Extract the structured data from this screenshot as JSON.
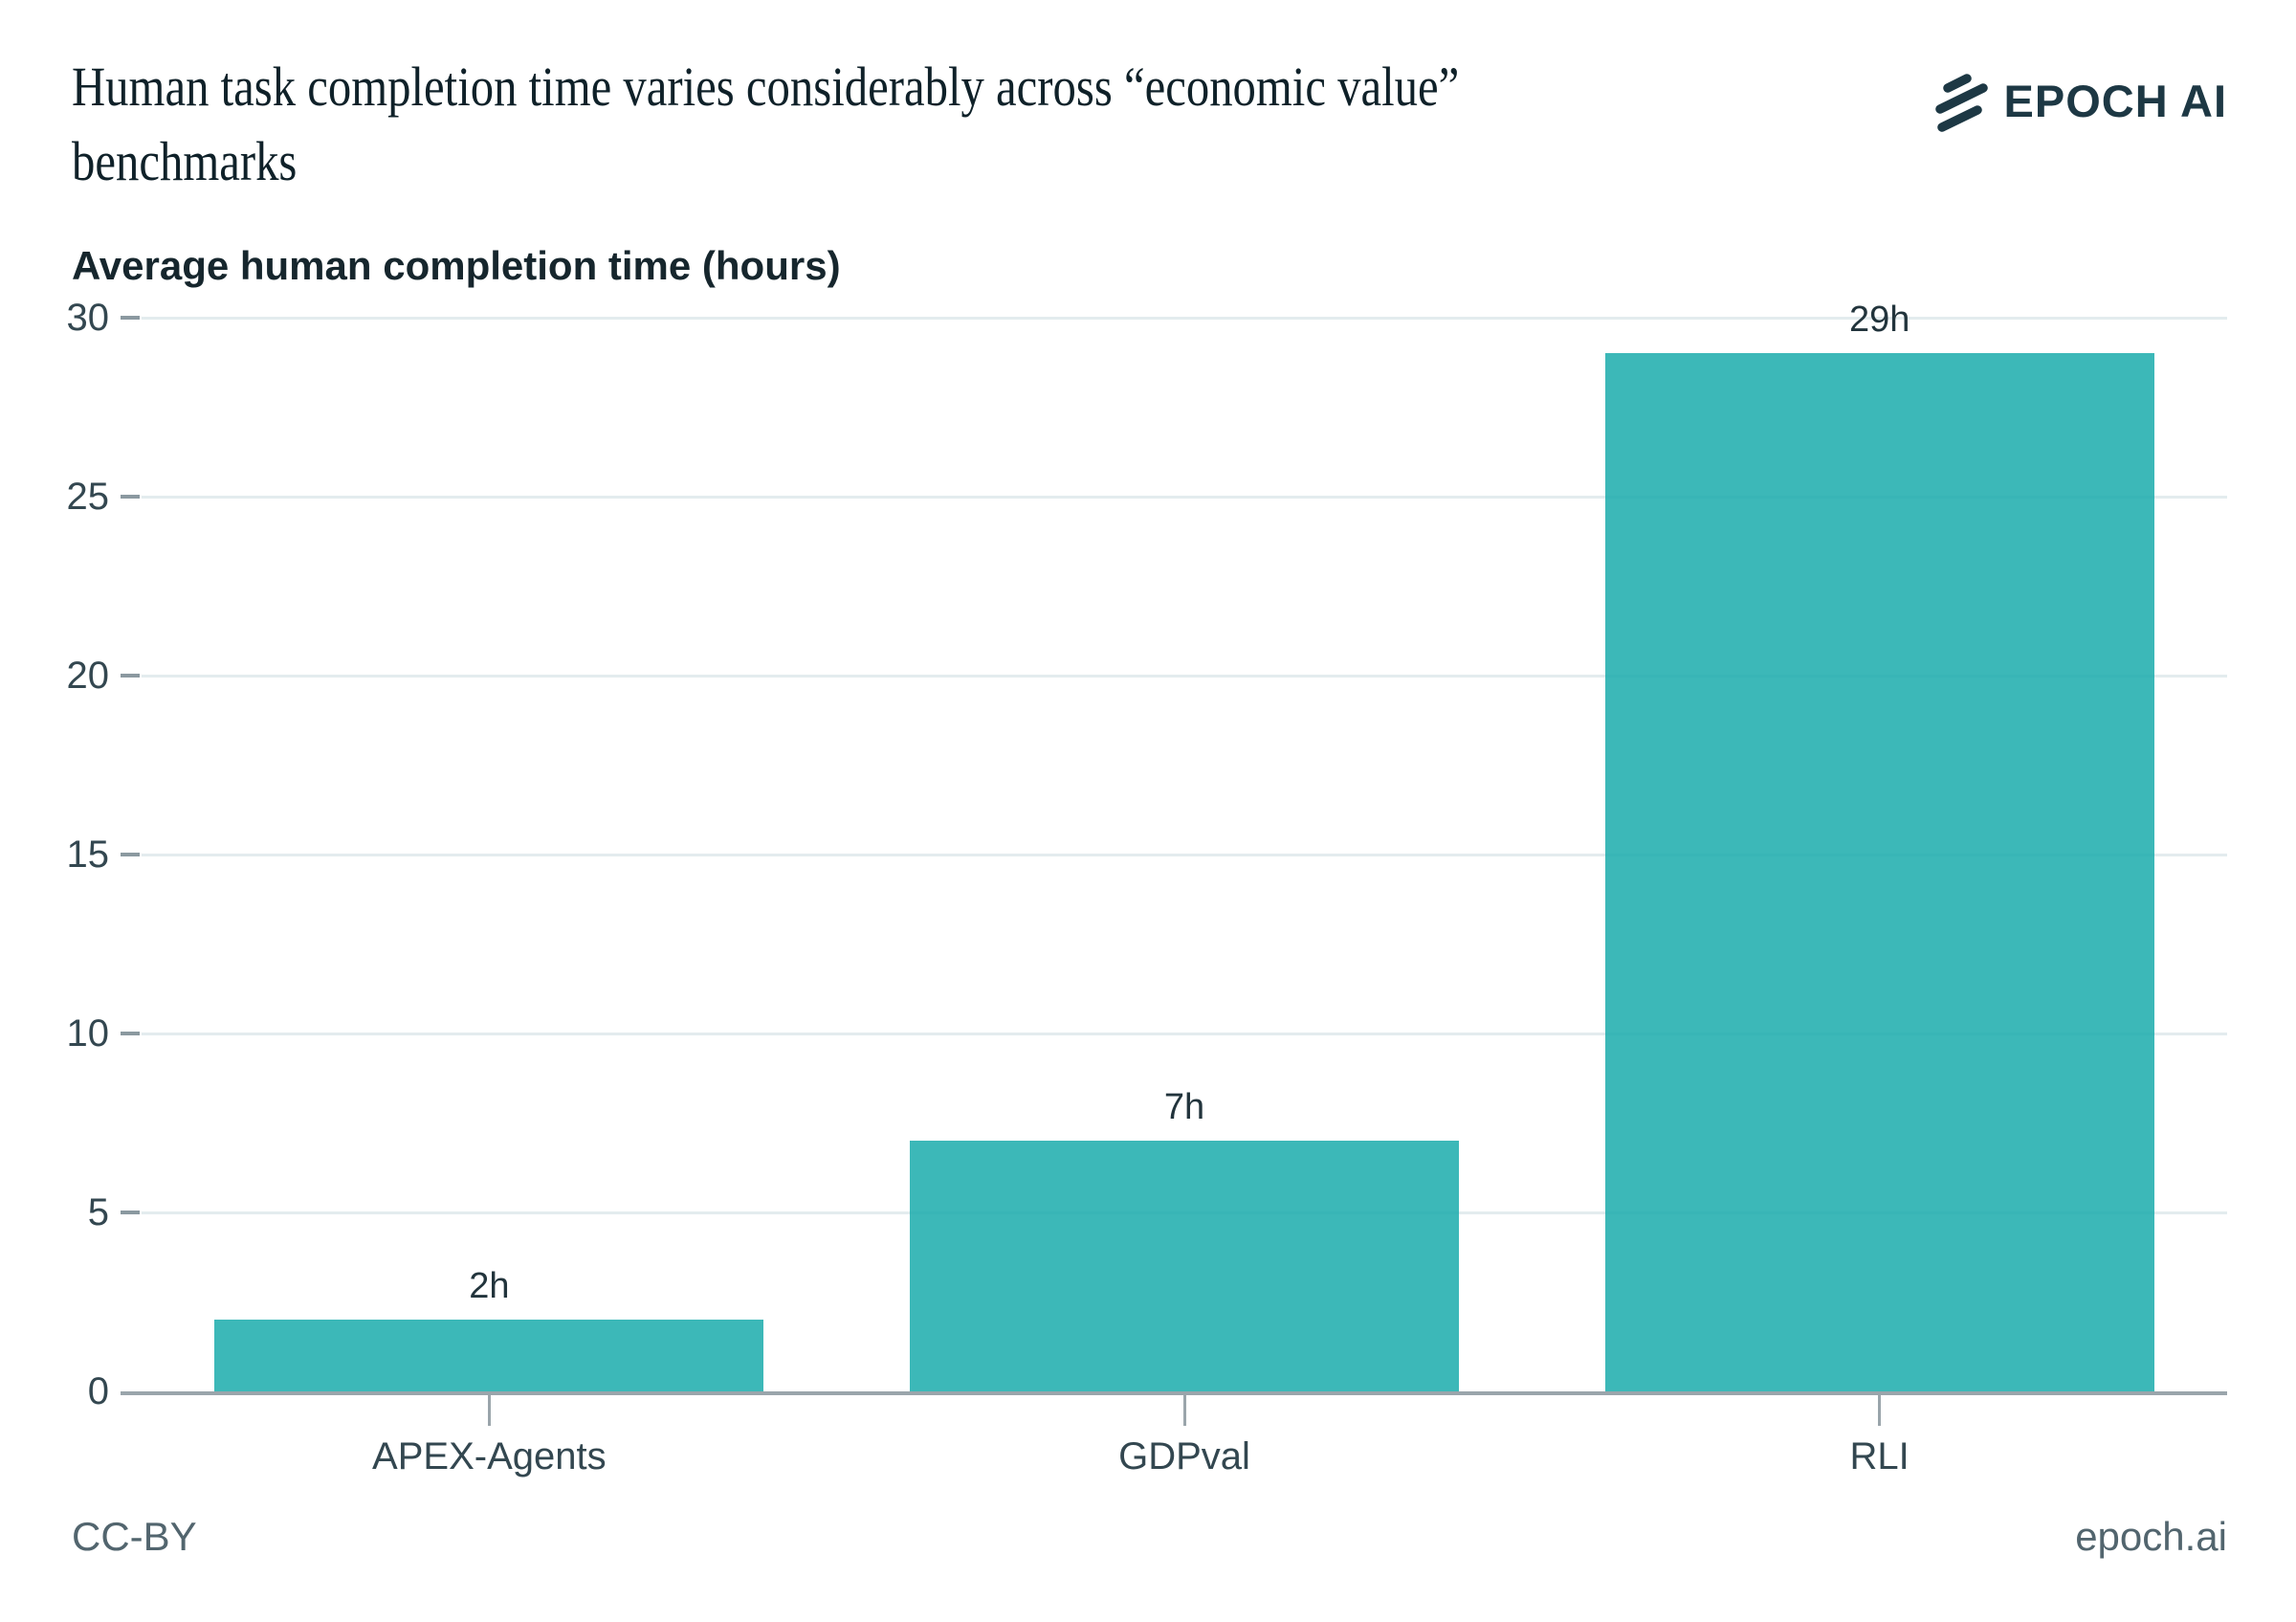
{
  "header": {
    "title_line1": "Human task completion time varies considerably across “economic value”",
    "title_line2": "benchmarks",
    "logo_text": "EPOCH AI"
  },
  "chart_data": {
    "type": "bar",
    "title": "Human task completion time varies considerably across “economic value” benchmarks",
    "subtitle": "Average human completion time (hours)",
    "ylabel": "Average human completion time (hours)",
    "xlabel": "",
    "categories": [
      "APEX-Agents",
      "GDPval",
      "RLI"
    ],
    "values": [
      2,
      7,
      29
    ],
    "value_labels": [
      "2h",
      "7h",
      "29h"
    ],
    "yticks": [
      0,
      5,
      10,
      15,
      20,
      25,
      30
    ],
    "ylim": [
      0,
      30
    ],
    "grid": "horizontal",
    "legend": "none",
    "bar_color": "#35b6b5"
  },
  "colors": {
    "bar": "rgba(26,172,171,0.85)",
    "grid": "#e3ecee",
    "axis": "#9aa5ab",
    "tick_dash": "#8b99a0",
    "tick_label": "#334750",
    "value_label": "#22343c",
    "title": "#0f2129",
    "footer": "#52656e",
    "logo": "#1d3844"
  },
  "footer": {
    "license": "CC-BY",
    "site": "epoch.ai"
  }
}
